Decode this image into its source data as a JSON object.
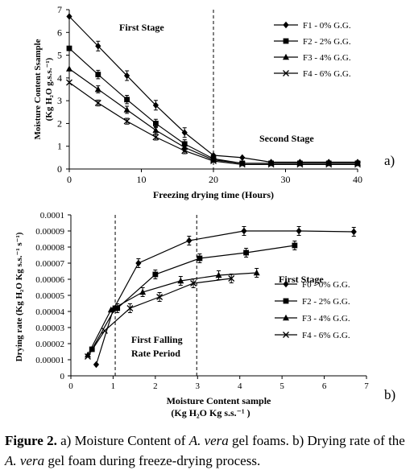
{
  "chart_data": [
    {
      "type": "line",
      "panel_label": "a)",
      "xlabel": "Freezing drying time (Hours)",
      "ylabel_line1": "Moisture Content  Ssample",
      "ylabel_line2": "(Kg H₂O g.s.s.⁻¹)",
      "xlim": [
        0,
        40
      ],
      "ylim": [
        0,
        7
      ],
      "x_ticks": [
        0,
        10,
        20,
        30,
        40
      ],
      "y_ticks": [
        0,
        1,
        2,
        3,
        4,
        5,
        6,
        7
      ],
      "divider_x": 20,
      "annotations": [
        "First Stage",
        "Second Stage"
      ],
      "x": [
        0,
        4,
        8,
        12,
        16,
        20,
        24,
        28,
        32,
        36,
        40
      ],
      "series": [
        {
          "name": "F1 -  0% G.G.",
          "marker": "diamond",
          "values": [
            6.7,
            5.4,
            4.1,
            2.8,
            1.6,
            0.6,
            0.5,
            0.3,
            0.3,
            0.3,
            0.3
          ]
        },
        {
          "name": "F2 -  2% G.G.",
          "marker": "square",
          "values": [
            5.3,
            4.15,
            3.05,
            2.0,
            1.1,
            0.45,
            0.25,
            0.25,
            0.25,
            0.25,
            0.25
          ]
        },
        {
          "name": "F3 -  4% G.G.",
          "marker": "triangle",
          "values": [
            4.4,
            3.5,
            2.6,
            1.7,
            0.95,
            0.4,
            0.25,
            0.25,
            0.25,
            0.25,
            0.25
          ]
        },
        {
          "name": "F4 -  6% G.G.",
          "marker": "cross",
          "values": [
            3.8,
            2.9,
            2.1,
            1.4,
            0.8,
            0.35,
            0.2,
            0.2,
            0.2,
            0.2,
            0.2
          ]
        }
      ],
      "legend": "top-right"
    },
    {
      "type": "line",
      "panel_label": "b)",
      "xlabel_line1": "Moisture Content sample",
      "xlabel_line2": "(Kg H₂O Kg s.s.⁻¹ )",
      "ylabel": "Drying rate  (Kg H₂O Kg s.s.⁻¹ s⁻¹)",
      "xlim": [
        0,
        7
      ],
      "ylim": [
        0,
        0.0001
      ],
      "x_ticks": [
        0,
        1,
        2,
        3,
        4,
        5,
        6,
        7
      ],
      "y_ticks": [
        "0",
        "0.00001",
        "0.00002",
        "0.00003",
        "0.00004",
        "0.00005",
        "0.00006",
        "0.00007",
        "0.00008",
        "0.00009",
        "0.0001"
      ],
      "divider_x": [
        1.05,
        2.98
      ],
      "annotations": [
        "First Stage",
        "First  Falling",
        "Rate Period"
      ],
      "series": [
        {
          "name": "F0 -  0% G.G.",
          "marker": "diamond",
          "points": [
            [
              0.6,
              7e-06
            ],
            [
              1.0,
              4.1e-05
            ],
            [
              1.6,
              7e-05
            ],
            [
              2.8,
              8.4e-05
            ],
            [
              4.1,
              9e-05
            ],
            [
              5.4,
              9e-05
            ],
            [
              6.7,
              8.95e-05
            ]
          ]
        },
        {
          "name": "F2 -  2% G.G.",
          "marker": "square",
          "points": [
            [
              0.5,
              1.65e-05
            ],
            [
              1.05,
              4.2e-05
            ],
            [
              1.1,
              4.2e-05
            ],
            [
              2.0,
              6.3e-05
            ],
            [
              3.05,
              7.3e-05
            ],
            [
              4.15,
              7.65e-05
            ],
            [
              5.3,
              8.1e-05
            ]
          ]
        },
        {
          "name": "F3 -  4% G.G.",
          "marker": "triangle",
          "points": [
            [
              0.4,
              1.3e-05
            ],
            [
              0.95,
              4.1e-05
            ],
            [
              1.7,
              5.2e-05
            ],
            [
              2.6,
              5.9e-05
            ],
            [
              3.5,
              6.25e-05
            ],
            [
              4.4,
              6.4e-05
            ]
          ]
        },
        {
          "name": "F4 -  6% G.G.",
          "marker": "cross",
          "points": [
            [
              0.4,
              1.2e-05
            ],
            [
              0.8,
              2.8e-05
            ],
            [
              1.4,
              4.2e-05
            ],
            [
              2.1,
              4.9e-05
            ],
            [
              2.9,
              5.75e-05
            ],
            [
              3.8,
              6.05e-05
            ]
          ]
        }
      ],
      "legend": "bottom-right"
    }
  ],
  "caption": {
    "label": "Figure 2.",
    "part1": " a) Moisture Content of ",
    "species1": "A. vera",
    "part2": " gel foams. b) Drying rate of the ",
    "species2": "A. vera",
    "part3": " gel foam during freeze-drying process."
  }
}
